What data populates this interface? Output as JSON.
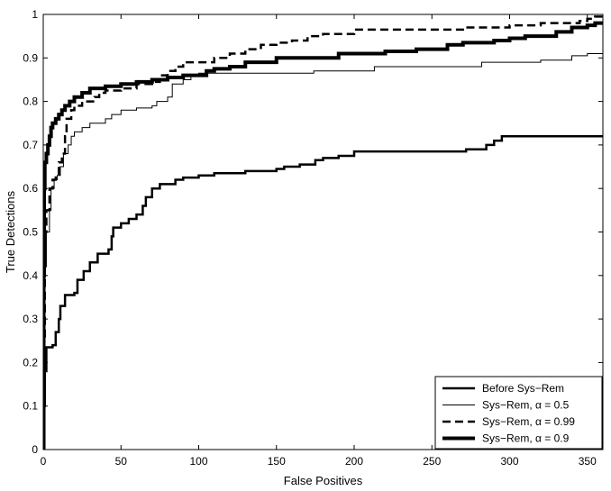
{
  "chart_data": {
    "type": "line",
    "xlabel": "False Positives",
    "ylabel": "True Detections",
    "xlim": [
      0,
      360
    ],
    "ylim": [
      0,
      1
    ],
    "x_ticks": [
      0,
      50,
      100,
      150,
      200,
      250,
      300,
      350
    ],
    "y_ticks": [
      0,
      0.1,
      0.2,
      0.3,
      0.4,
      0.5,
      0.6,
      0.7,
      0.8,
      0.9,
      1
    ],
    "y_tick_labels": [
      "0",
      "0.1",
      "0.2",
      "0.3",
      "0.4",
      "0.5",
      "0.6",
      "0.7",
      "0.8",
      "0.9",
      "1"
    ],
    "grid": false,
    "legend_position": "bottom-right",
    "series": [
      {
        "name": "Before Sys−Rem",
        "style": "solid-medium",
        "color": "#000000",
        "points": [
          [
            0,
            0
          ],
          [
            0.5,
            0.1
          ],
          [
            1,
            0.18
          ],
          [
            2,
            0.235
          ],
          [
            6,
            0.24
          ],
          [
            8,
            0.27
          ],
          [
            10,
            0.3
          ],
          [
            11,
            0.33
          ],
          [
            14,
            0.355
          ],
          [
            20,
            0.36
          ],
          [
            22,
            0.39
          ],
          [
            26,
            0.41
          ],
          [
            30,
            0.43
          ],
          [
            35,
            0.45
          ],
          [
            42,
            0.46
          ],
          [
            44,
            0.49
          ],
          [
            45,
            0.51
          ],
          [
            50,
            0.52
          ],
          [
            55,
            0.53
          ],
          [
            60,
            0.54
          ],
          [
            64,
            0.56
          ],
          [
            66,
            0.58
          ],
          [
            70,
            0.6
          ],
          [
            75,
            0.61
          ],
          [
            80,
            0.61
          ],
          [
            85,
            0.62
          ],
          [
            90,
            0.625
          ],
          [
            100,
            0.63
          ],
          [
            110,
            0.635
          ],
          [
            130,
            0.64
          ],
          [
            150,
            0.645
          ],
          [
            155,
            0.65
          ],
          [
            165,
            0.655
          ],
          [
            175,
            0.665
          ],
          [
            180,
            0.67
          ],
          [
            190,
            0.675
          ],
          [
            200,
            0.685
          ],
          [
            205,
            0.685
          ],
          [
            270,
            0.685
          ],
          [
            272,
            0.69
          ],
          [
            285,
            0.7
          ],
          [
            290,
            0.71
          ],
          [
            295,
            0.72
          ],
          [
            360,
            0.72
          ]
        ]
      },
      {
        "name": "Sys−Rem, α = 0.5",
        "style": "solid-thin",
        "color": "#000000",
        "points": [
          [
            0,
            0
          ],
          [
            0.5,
            0.15
          ],
          [
            1,
            0.42
          ],
          [
            2,
            0.5
          ],
          [
            4,
            0.55
          ],
          [
            5,
            0.6
          ],
          [
            7,
            0.62
          ],
          [
            9,
            0.63
          ],
          [
            11,
            0.65
          ],
          [
            13,
            0.68
          ],
          [
            16,
            0.7
          ],
          [
            18,
            0.72
          ],
          [
            20,
            0.73
          ],
          [
            25,
            0.74
          ],
          [
            30,
            0.75
          ],
          [
            40,
            0.76
          ],
          [
            44,
            0.77
          ],
          [
            50,
            0.78
          ],
          [
            60,
            0.785
          ],
          [
            70,
            0.79
          ],
          [
            73,
            0.8
          ],
          [
            80,
            0.81
          ],
          [
            83,
            0.84
          ],
          [
            90,
            0.85
          ],
          [
            95,
            0.86
          ],
          [
            100,
            0.865
          ],
          [
            170,
            0.865
          ],
          [
            174,
            0.87
          ],
          [
            210,
            0.87
          ],
          [
            213,
            0.88
          ],
          [
            280,
            0.88
          ],
          [
            282,
            0.89
          ],
          [
            320,
            0.895
          ],
          [
            340,
            0.905
          ],
          [
            350,
            0.91
          ],
          [
            360,
            0.91
          ]
        ]
      },
      {
        "name": "Sys−Rem, α = 0.99",
        "style": "dashed",
        "color": "#000000",
        "points": [
          [
            0,
            0
          ],
          [
            0.5,
            0.25
          ],
          [
            1,
            0.5
          ],
          [
            2,
            0.55
          ],
          [
            4,
            0.6
          ],
          [
            6,
            0.62
          ],
          [
            8,
            0.63
          ],
          [
            10,
            0.66
          ],
          [
            12,
            0.68
          ],
          [
            14,
            0.72
          ],
          [
            15,
            0.76
          ],
          [
            18,
            0.78
          ],
          [
            20,
            0.79
          ],
          [
            25,
            0.8
          ],
          [
            30,
            0.8
          ],
          [
            33,
            0.81
          ],
          [
            36,
            0.82
          ],
          [
            40,
            0.825
          ],
          [
            50,
            0.83
          ],
          [
            60,
            0.84
          ],
          [
            70,
            0.845
          ],
          [
            75,
            0.86
          ],
          [
            80,
            0.87
          ],
          [
            85,
            0.88
          ],
          [
            90,
            0.89
          ],
          [
            100,
            0.89
          ],
          [
            110,
            0.9
          ],
          [
            120,
            0.91
          ],
          [
            130,
            0.92
          ],
          [
            140,
            0.93
          ],
          [
            150,
            0.935
          ],
          [
            160,
            0.94
          ],
          [
            170,
            0.95
          ],
          [
            180,
            0.955
          ],
          [
            200,
            0.965
          ],
          [
            260,
            0.965
          ],
          [
            270,
            0.97
          ],
          [
            300,
            0.975
          ],
          [
            320,
            0.98
          ],
          [
            345,
            0.985
          ],
          [
            350,
            0.99
          ],
          [
            355,
            0.995
          ],
          [
            360,
            0.995
          ]
        ]
      },
      {
        "name": "Sys−Rem, α = 0.9",
        "style": "solid-thick",
        "color": "#000000",
        "points": [
          [
            0,
            0
          ],
          [
            0.3,
            0.4
          ],
          [
            0.6,
            0.6
          ],
          [
            1,
            0.66
          ],
          [
            2,
            0.68
          ],
          [
            3,
            0.7
          ],
          [
            4,
            0.72
          ],
          [
            5,
            0.74
          ],
          [
            6,
            0.75
          ],
          [
            8,
            0.76
          ],
          [
            10,
            0.77
          ],
          [
            12,
            0.78
          ],
          [
            14,
            0.79
          ],
          [
            17,
            0.8
          ],
          [
            20,
            0.81
          ],
          [
            25,
            0.82
          ],
          [
            30,
            0.83
          ],
          [
            40,
            0.835
          ],
          [
            50,
            0.84
          ],
          [
            60,
            0.845
          ],
          [
            70,
            0.85
          ],
          [
            80,
            0.855
          ],
          [
            90,
            0.86
          ],
          [
            100,
            0.86
          ],
          [
            105,
            0.87
          ],
          [
            110,
            0.875
          ],
          [
            120,
            0.88
          ],
          [
            130,
            0.89
          ],
          [
            150,
            0.9
          ],
          [
            180,
            0.9
          ],
          [
            190,
            0.91
          ],
          [
            220,
            0.915
          ],
          [
            240,
            0.92
          ],
          [
            260,
            0.93
          ],
          [
            270,
            0.935
          ],
          [
            290,
            0.94
          ],
          [
            300,
            0.945
          ],
          [
            310,
            0.95
          ],
          [
            330,
            0.96
          ],
          [
            340,
            0.97
          ],
          [
            350,
            0.975
          ],
          [
            355,
            0.98
          ],
          [
            360,
            0.98
          ]
        ]
      }
    ]
  }
}
